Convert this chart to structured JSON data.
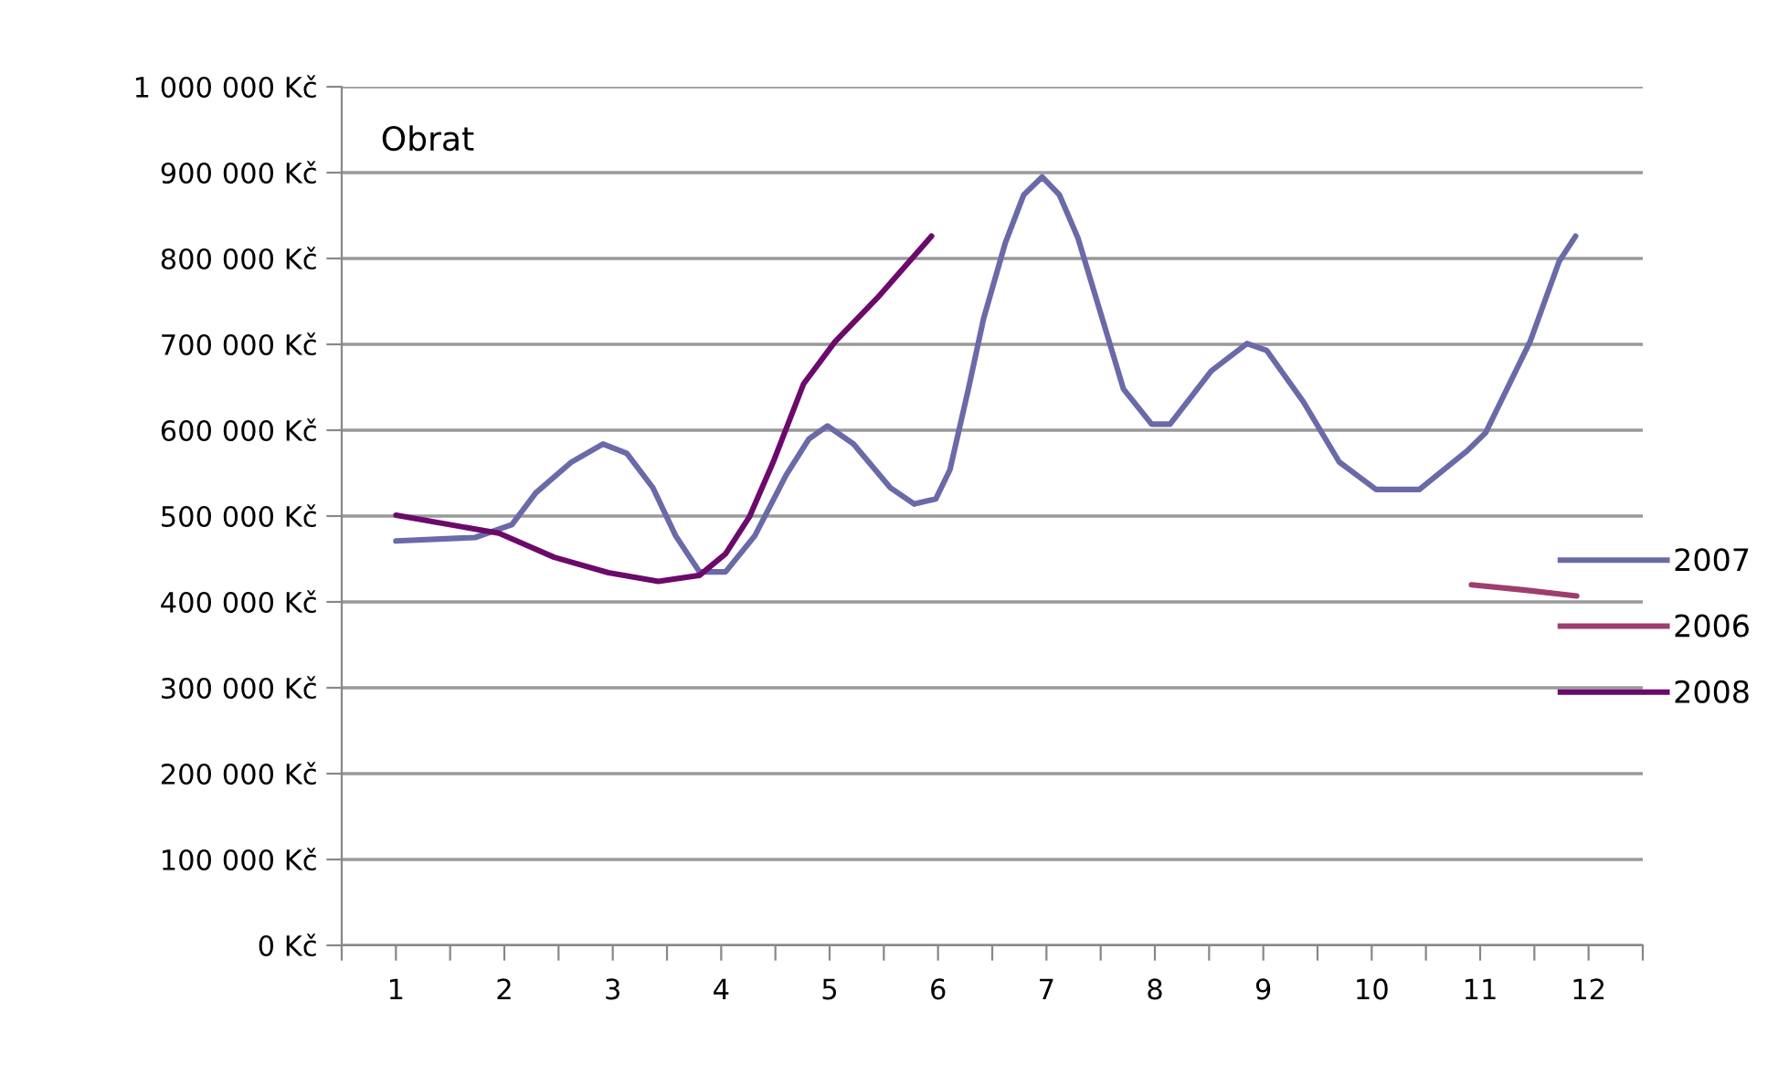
{
  "chart_data": {
    "type": "line",
    "title": "Obrat",
    "xlim": [
      0.5,
      12.5
    ],
    "xticks": [
      {
        "value": 0.5,
        "label": null
      },
      1,
      {
        "value": 1.5,
        "label": null
      },
      2,
      {
        "value": 2.5,
        "label": null
      },
      3,
      {
        "value": 3.5,
        "label": null
      },
      4,
      {
        "value": 4.5,
        "label": null
      },
      5,
      {
        "value": 5.5,
        "label": null
      },
      6,
      {
        "value": 6.5,
        "label": null
      },
      7,
      {
        "value": 7.5,
        "label": null
      },
      8,
      {
        "value": 8.5,
        "label": null
      },
      9,
      {
        "value": 9.5,
        "label": null
      },
      10,
      {
        "value": 10.5,
        "label": null
      },
      11,
      {
        "value": 11.5,
        "label": null
      },
      12,
      {
        "value": 12.5,
        "label": null
      }
    ],
    "ylim": [
      0,
      1000000
    ],
    "yticks": [
      {
        "value": 0,
        "label": "0 Kč"
      },
      {
        "value": 100000,
        "label": "100 000 Kč"
      },
      {
        "value": 200000,
        "label": "200 000 Kč"
      },
      {
        "value": 300000,
        "label": "300 000 Kč"
      },
      {
        "value": 400000,
        "label": "400 000 Kč"
      },
      {
        "value": 500000,
        "label": "500 000 Kč"
      },
      {
        "value": 600000,
        "label": "600 000 Kč"
      },
      {
        "value": 700000,
        "label": "700 000 Kč"
      },
      {
        "value": 800000,
        "label": "800 000 Kč"
      },
      {
        "value": 900000,
        "label": "900 000 Kč"
      },
      {
        "value": 1000000,
        "label": "1 000 000 Kč"
      }
    ],
    "grid": "y",
    "legend": "right",
    "marker": "none",
    "line_style": "solid",
    "series": [
      {
        "name": "2007",
        "color": "#6a6aa8",
        "x": [
          1.0,
          1.73,
          2.07,
          2.29,
          2.62,
          2.91,
          3.13,
          3.37,
          3.58,
          3.8,
          4.04,
          4.31,
          4.6,
          4.81,
          4.98,
          5.22,
          5.56,
          5.78,
          5.98,
          6.11,
          6.28,
          6.42,
          6.62,
          6.79,
          6.96,
          7.12,
          7.29,
          7.51,
          7.71,
          7.97,
          8.14,
          8.52,
          8.85,
          9.03,
          9.37,
          9.7,
          10.04,
          10.44,
          10.88,
          11.05,
          11.46,
          11.73,
          11.88
        ],
        "values": [
          471000,
          475000,
          490000,
          527000,
          563000,
          584000,
          573000,
          533000,
          477000,
          435000,
          435000,
          477000,
          548000,
          590000,
          605000,
          584000,
          533000,
          514000,
          520000,
          554000,
          648000,
          730000,
          818000,
          874000,
          895000,
          874000,
          824000,
          732000,
          648000,
          607000,
          607000,
          669000,
          701000,
          693000,
          633000,
          563000,
          531000,
          531000,
          576000,
          597000,
          703000,
          797000,
          826000
        ]
      },
      {
        "name": "2006",
        "color": "#9e3d6e",
        "x": [
          10.92,
          11.4,
          11.89
        ],
        "values": [
          420000,
          414000,
          407000
        ]
      },
      {
        "name": "2008",
        "color": "#6b0a6b",
        "x": [
          1.0,
          1.95,
          2.46,
          2.96,
          3.42,
          3.8,
          4.04,
          4.26,
          4.48,
          4.76,
          5.05,
          5.44,
          5.94
        ],
        "values": [
          501000,
          480000,
          452000,
          434000,
          424000,
          431000,
          456000,
          499000,
          563000,
          654000,
          703000,
          754000,
          826000
        ]
      }
    ]
  }
}
